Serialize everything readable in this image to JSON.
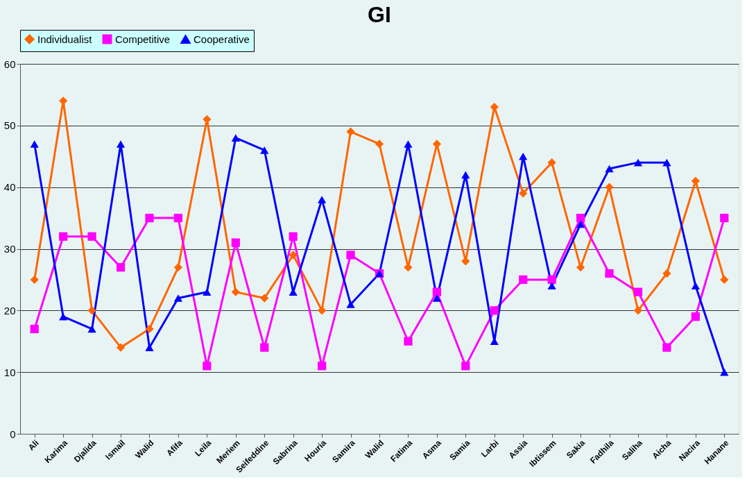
{
  "chart_data": {
    "type": "line",
    "title": "GI",
    "categories": [
      "Ali",
      "Karima",
      "Djalida",
      "Ismail",
      "Walid",
      "Afifa",
      "Leila",
      "Meriem",
      "Seifeddine",
      "Sabrina",
      "Houria",
      "Samira",
      "Walid",
      "Fatima",
      "Asma",
      "Samia",
      "Larbi",
      "Assia",
      "Ibtissem",
      "Sakia",
      "Fadhila",
      "Saliha",
      "Aicha",
      "Nacira",
      "Hanane"
    ],
    "series": [
      {
        "name": "Individualist",
        "color": "#ff6600",
        "marker": "diamond",
        "values": [
          25,
          54,
          20,
          14,
          17,
          27,
          51,
          23,
          22,
          29,
          20,
          49,
          47,
          27,
          47,
          28,
          53,
          39,
          44,
          27,
          40,
          20,
          26,
          41,
          25
        ]
      },
      {
        "name": "Competitive",
        "color": "#ff00ff",
        "marker": "square",
        "values": [
          17,
          32,
          32,
          27,
          35,
          35,
          11,
          31,
          14,
          32,
          11,
          29,
          26,
          15,
          23,
          11,
          20,
          25,
          25,
          35,
          26,
          23,
          14,
          19,
          35
        ]
      },
      {
        "name": "Cooperative",
        "color": "#0000ff",
        "marker": "triangle",
        "values": [
          47,
          19,
          17,
          47,
          14,
          22,
          23,
          48,
          46,
          23,
          38,
          21,
          26,
          47,
          22,
          42,
          15,
          45,
          24,
          34,
          43,
          44,
          44,
          24,
          10
        ]
      }
    ],
    "ylim": [
      0,
      60
    ],
    "yticks": [
      0,
      10,
      20,
      30,
      40,
      50,
      60
    ],
    "grid": "y",
    "legend": "top",
    "line_style": "solid"
  }
}
